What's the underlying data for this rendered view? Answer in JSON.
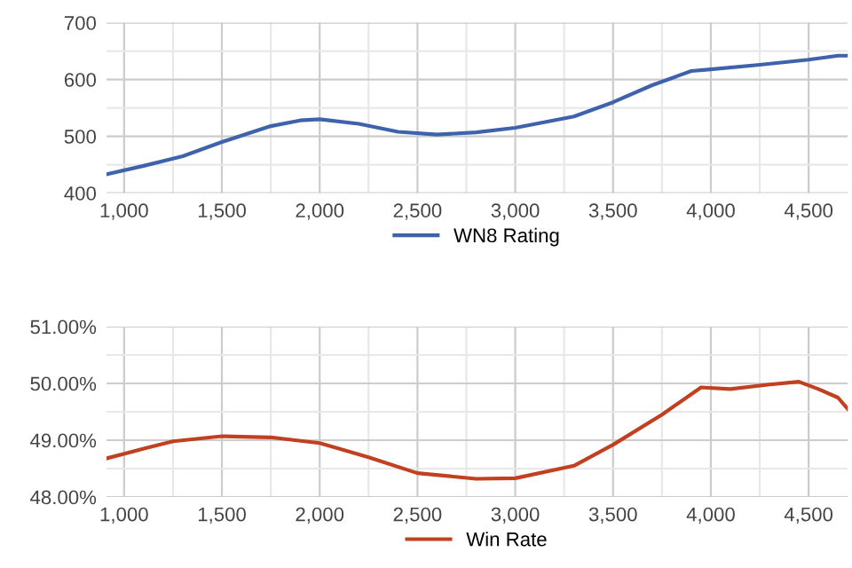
{
  "chart_data": [
    {
      "type": "line",
      "x": [
        910,
        1100,
        1300,
        1500,
        1750,
        1900,
        2000,
        2200,
        2400,
        2600,
        2800,
        3000,
        3300,
        3500,
        3700,
        3900,
        4000,
        4250,
        4500,
        4650,
        4700
      ],
      "series": [
        {
          "name": "WN8 Rating",
          "color": "#3f62ad",
          "values": [
            433,
            448,
            465,
            490,
            518,
            528,
            530,
            522,
            508,
            503,
            507,
            515,
            535,
            560,
            590,
            615,
            618,
            626,
            635,
            642,
            642
          ]
        }
      ],
      "xlim": [
        910,
        4700
      ],
      "ylim": [
        400,
        700
      ],
      "xticks": [
        {
          "value": 1000,
          "label": "1,000"
        },
        {
          "value": 1250,
          "label": null
        },
        {
          "value": 1500,
          "label": "1,500"
        },
        {
          "value": 1750,
          "label": null
        },
        {
          "value": 2000,
          "label": "2,000"
        },
        {
          "value": 2250,
          "label": null
        },
        {
          "value": 2500,
          "label": "2,500"
        },
        {
          "value": 2750,
          "label": null
        },
        {
          "value": 3000,
          "label": "3,000"
        },
        {
          "value": 3250,
          "label": null
        },
        {
          "value": 3500,
          "label": "3,500"
        },
        {
          "value": 3750,
          "label": null
        },
        {
          "value": 4000,
          "label": "4,000"
        },
        {
          "value": 4250,
          "label": null
        },
        {
          "value": 4500,
          "label": "4,500"
        }
      ],
      "yticks": [
        400,
        {
          "value": 450,
          "label": null
        },
        500,
        {
          "value": 550,
          "label": null
        },
        600,
        {
          "value": 650,
          "label": null
        },
        700
      ],
      "grid": true,
      "legend": "bottom",
      "marker": "none",
      "line_style": "solid"
    },
    {
      "type": "line",
      "x": [
        910,
        1100,
        1250,
        1500,
        1750,
        2000,
        2250,
        2500,
        2800,
        3000,
        3300,
        3500,
        3750,
        3950,
        4100,
        4300,
        4450,
        4550,
        4650,
        4700
      ],
      "series": [
        {
          "name": "Win Rate",
          "color": "#c0401f",
          "values": [
            48.68,
            48.85,
            48.98,
            49.07,
            49.05,
            48.95,
            48.7,
            48.42,
            48.32,
            48.33,
            48.55,
            48.92,
            49.45,
            49.93,
            49.9,
            49.98,
            50.03,
            49.9,
            49.75,
            49.55
          ]
        }
      ],
      "xlim": [
        910,
        4700
      ],
      "ylim": [
        48,
        51
      ],
      "xticks": [
        {
          "value": 1000,
          "label": "1,000"
        },
        {
          "value": 1250,
          "label": null
        },
        {
          "value": 1500,
          "label": "1,500"
        },
        {
          "value": 1750,
          "label": null
        },
        {
          "value": 2000,
          "label": "2,000"
        },
        {
          "value": 2250,
          "label": null
        },
        {
          "value": 2500,
          "label": "2,500"
        },
        {
          "value": 2750,
          "label": null
        },
        {
          "value": 3000,
          "label": "3,000"
        },
        {
          "value": 3250,
          "label": null
        },
        {
          "value": 3500,
          "label": "3,500"
        },
        {
          "value": 3750,
          "label": null
        },
        {
          "value": 4000,
          "label": "4,000"
        },
        {
          "value": 4250,
          "label": null
        },
        {
          "value": 4500,
          "label": "4,500"
        }
      ],
      "yticks": [
        {
          "value": 48,
          "label": "48.00%"
        },
        {
          "value": 48.5,
          "label": null
        },
        {
          "value": 49,
          "label": "49.00%"
        },
        {
          "value": 49.5,
          "label": null
        },
        {
          "value": 50,
          "label": "50.00%"
        },
        {
          "value": 50.5,
          "label": null
        },
        {
          "value": 51,
          "label": "51.00%"
        }
      ],
      "grid": true,
      "legend": "bottom",
      "marker": "none",
      "line_style": "solid"
    }
  ]
}
